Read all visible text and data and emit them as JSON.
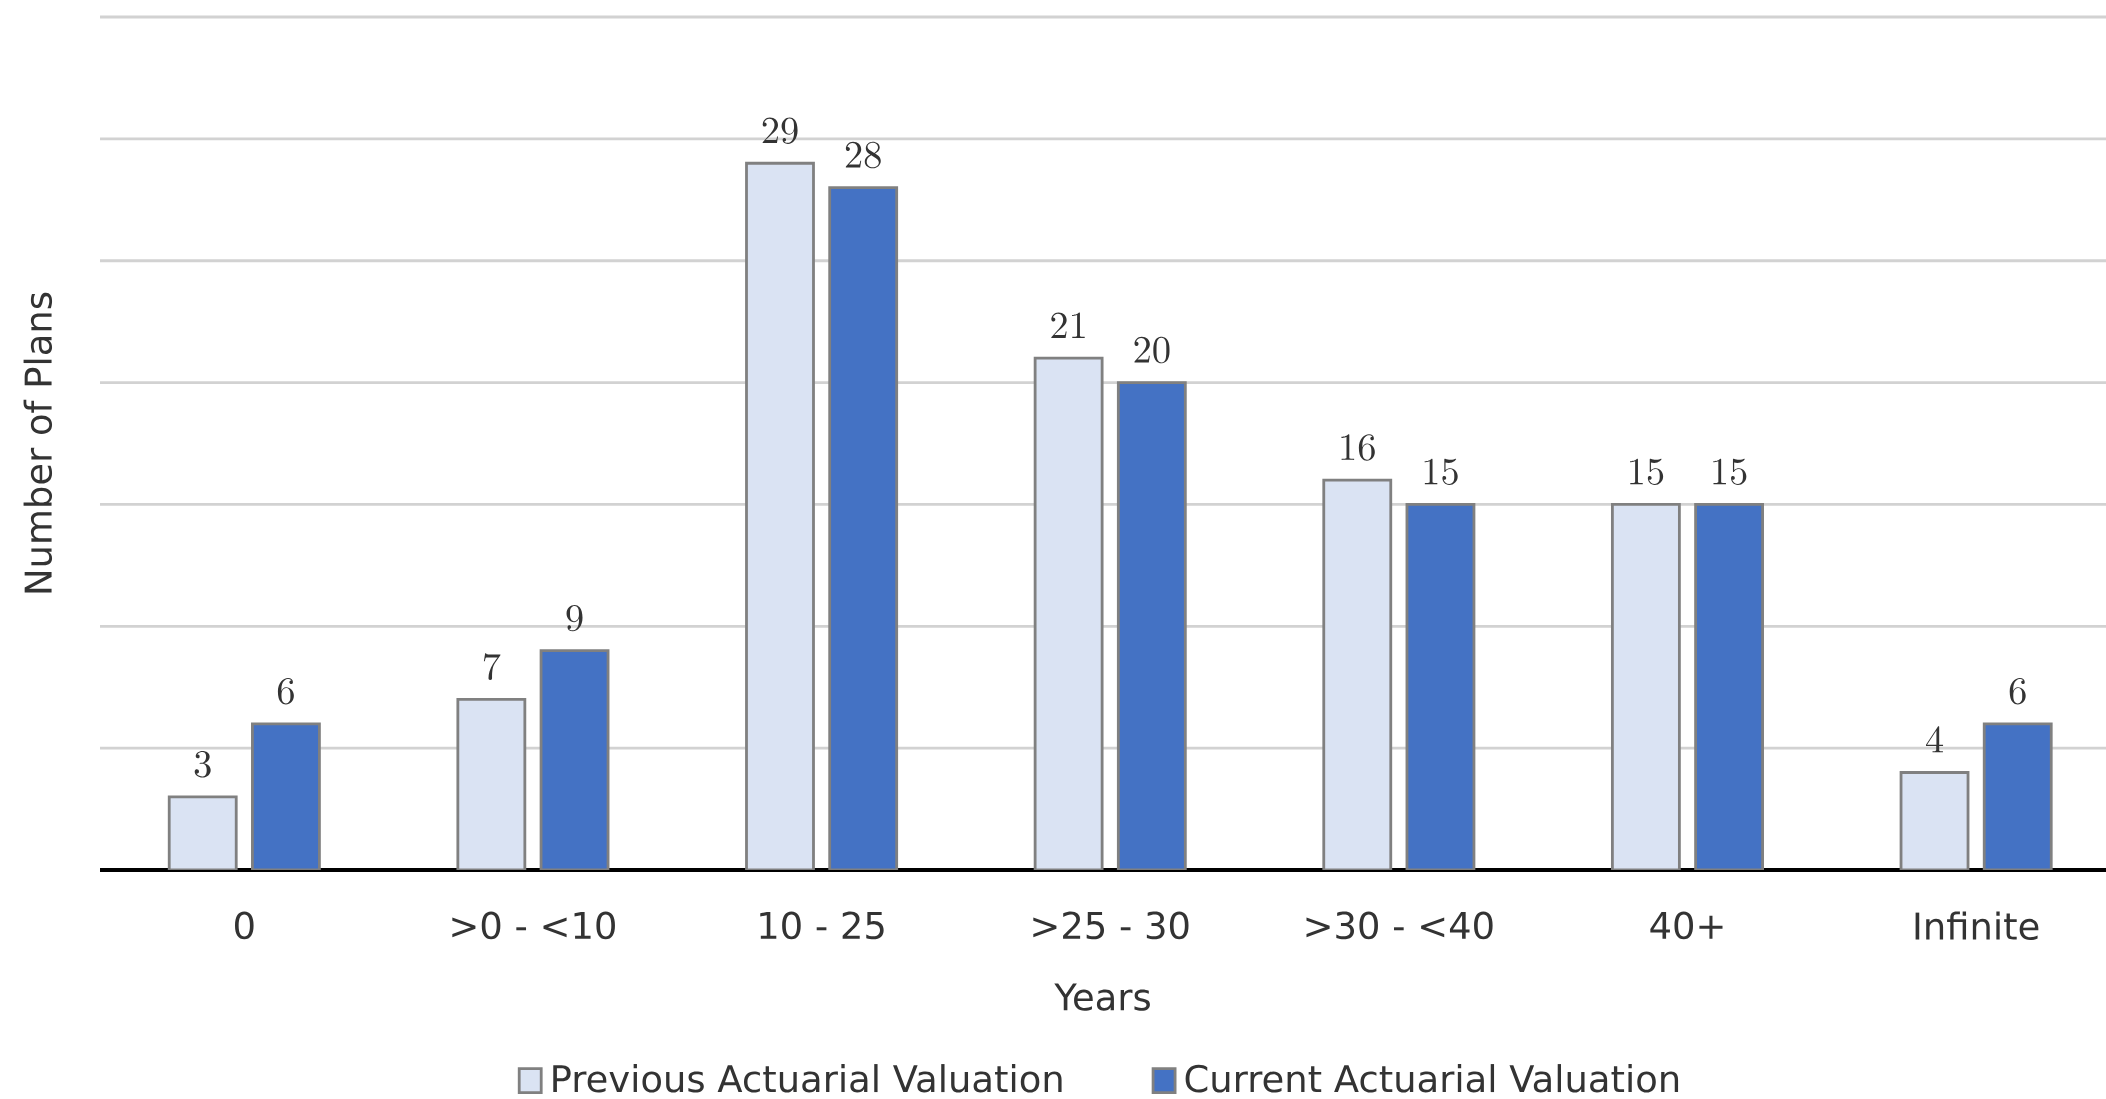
{
  "chart_data": {
    "type": "bar",
    "xlabel": "Years",
    "ylabel": "Number of Plans",
    "categories": [
      "0",
      ">0 - <10",
      "10 - 25",
      ">25 - 30",
      ">30 - <40",
      "40+",
      "Infinite"
    ],
    "series": [
      {
        "name": "Previous Actuarial Valuation",
        "color": "#dae3f3",
        "values": [
          3,
          7,
          29,
          21,
          16,
          15,
          4
        ]
      },
      {
        "name": "Current Actuarial Valuation",
        "color": "#4472c4",
        "values": [
          6,
          9,
          28,
          20,
          15,
          15,
          6
        ]
      }
    ],
    "ylim": [
      0,
      35
    ],
    "yticks": [
      {
        "value": 0,
        "label": null
      },
      {
        "value": 5,
        "label": null
      },
      {
        "value": 10,
        "label": null
      },
      {
        "value": 15,
        "label": null
      },
      {
        "value": 20,
        "label": null
      },
      {
        "value": 25,
        "label": null
      },
      {
        "value": 30,
        "label": null
      },
      {
        "value": 35,
        "label": null
      }
    ],
    "tick_labels": "x",
    "grid": "y",
    "legend": "bottom",
    "data_labels": true
  }
}
